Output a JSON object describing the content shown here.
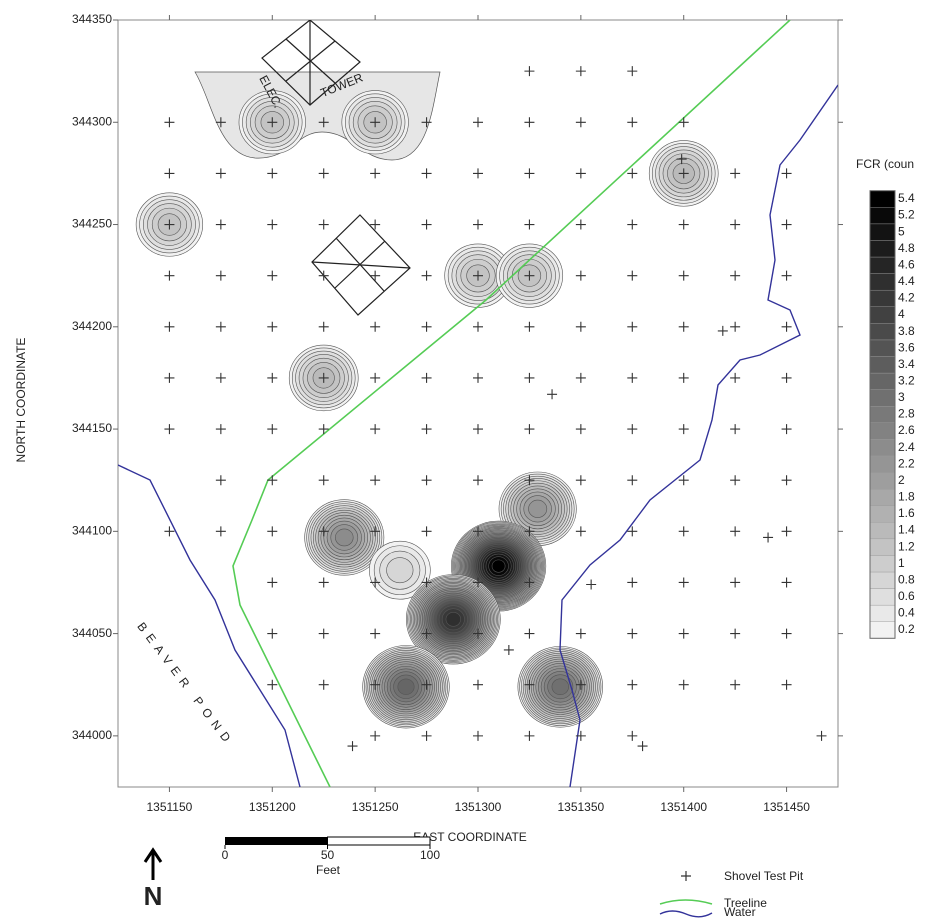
{
  "chart_data": {
    "type": "scatter",
    "xlabel": "EAST COORDINATE",
    "ylabel": "NORTH COORDINATE",
    "xlim": [
      1351125,
      1351475
    ],
    "ylim": [
      343975,
      344350
    ],
    "xticks": [
      1351150,
      1351200,
      1351250,
      1351300,
      1351350,
      1351400,
      1351450
    ],
    "yticks": [
      344000,
      344050,
      344100,
      344150,
      344200,
      344250,
      344300,
      344350
    ],
    "series": [
      {
        "name": "Shovel Test Pit",
        "color": "#333333",
        "x": [
          1351325,
          1351350,
          1351375,
          1351150,
          1351175,
          1351200,
          1351225,
          1351250,
          1351275,
          1351300,
          1351325,
          1351350,
          1351375,
          1351400,
          1351150,
          1351175,
          1351200,
          1351225,
          1351250,
          1351275,
          1351300,
          1351325,
          1351350,
          1351375,
          1351400,
          1351425,
          1351450,
          1351399,
          1351150,
          1351175,
          1351200,
          1351225,
          1351250,
          1351275,
          1351300,
          1351325,
          1351350,
          1351375,
          1351400,
          1351425,
          1351450,
          1351150,
          1351175,
          1351200,
          1351225,
          1351250,
          1351275,
          1351300,
          1351325,
          1351350,
          1351375,
          1351400,
          1351425,
          1351450,
          1351150,
          1351175,
          1351200,
          1351225,
          1351250,
          1351275,
          1351300,
          1351325,
          1351350,
          1351375,
          1351400,
          1351425,
          1351450,
          1351419,
          1351150,
          1351175,
          1351200,
          1351225,
          1351250,
          1351275,
          1351300,
          1351325,
          1351350,
          1351375,
          1351400,
          1351425,
          1351450,
          1351336,
          1351150,
          1351175,
          1351200,
          1351225,
          1351250,
          1351275,
          1351300,
          1351325,
          1351350,
          1351375,
          1351400,
          1351425,
          1351450,
          1351175,
          1351200,
          1351225,
          1351250,
          1351275,
          1351300,
          1351325,
          1351350,
          1351375,
          1351400,
          1351425,
          1351450,
          1351150,
          1351175,
          1351200,
          1351225,
          1351250,
          1351275,
          1351300,
          1351325,
          1351350,
          1351375,
          1351400,
          1351425,
          1351450,
          1351441,
          1351200,
          1351225,
          1351250,
          1351275,
          1351300,
          1351325,
          1351375,
          1351400,
          1351425,
          1351450,
          1351355,
          1351200,
          1351225,
          1351250,
          1351275,
          1351300,
          1351325,
          1351350,
          1351375,
          1351400,
          1351425,
          1351450,
          1351315,
          1351200,
          1351225,
          1351250,
          1351275,
          1351300,
          1351325,
          1351350,
          1351375,
          1351400,
          1351425,
          1351450,
          1351250,
          1351275,
          1351300,
          1351325,
          1351350,
          1351375,
          1351239,
          1351380,
          1351467
        ],
        "y": [
          344325,
          344325,
          344325,
          344300,
          344300,
          344300,
          344300,
          344300,
          344300,
          344300,
          344300,
          344300,
          344300,
          344300,
          344275,
          344275,
          344275,
          344275,
          344275,
          344275,
          344275,
          344275,
          344275,
          344275,
          344275,
          344275,
          344275,
          344282,
          344250,
          344250,
          344250,
          344250,
          344250,
          344250,
          344250,
          344250,
          344250,
          344250,
          344250,
          344250,
          344250,
          344225,
          344225,
          344225,
          344225,
          344225,
          344225,
          344225,
          344225,
          344225,
          344225,
          344225,
          344225,
          344225,
          344200,
          344200,
          344200,
          344200,
          344200,
          344200,
          344200,
          344200,
          344200,
          344200,
          344200,
          344200,
          344200,
          344198,
          344175,
          344175,
          344175,
          344175,
          344175,
          344175,
          344175,
          344175,
          344175,
          344175,
          344175,
          344175,
          344175,
          344167,
          344150,
          344150,
          344150,
          344150,
          344150,
          344150,
          344150,
          344150,
          344150,
          344150,
          344150,
          344150,
          344150,
          344125,
          344125,
          344125,
          344125,
          344125,
          344125,
          344125,
          344125,
          344125,
          344125,
          344125,
          344125,
          344100,
          344100,
          344100,
          344100,
          344100,
          344100,
          344100,
          344100,
          344100,
          344100,
          344100,
          344100,
          344100,
          344097,
          344075,
          344075,
          344075,
          344075,
          344075,
          344075,
          344075,
          344075,
          344075,
          344075,
          344074,
          344050,
          344050,
          344050,
          344050,
          344050,
          344050,
          344050,
          344050,
          344050,
          344050,
          344050,
          344042,
          344025,
          344025,
          344025,
          344025,
          344025,
          344025,
          344025,
          344025,
          344025,
          344025,
          344025,
          344000,
          344000,
          344000,
          344000,
          344000,
          344000,
          343995,
          343995,
          344000
        ]
      }
    ],
    "fcr_peaks": {
      "x": [
        1351200,
        1351250,
        1351150,
        1351400,
        1351300,
        1351325,
        1351225,
        1351235,
        1351262,
        1351329,
        1351310,
        1351288,
        1351265,
        1351340
      ],
      "y": [
        344300,
        344300,
        344250,
        344275,
        344225,
        344225,
        344175,
        344097,
        344081,
        344111,
        344083,
        344057,
        344024,
        344024
      ],
      "values": [
        1.2,
        1.2,
        1.2,
        1.4,
        1.2,
        1.2,
        1.4,
        2.4,
        0.8,
        2.2,
        5.4,
        4.4,
        3.2,
        3
      ]
    },
    "colorbar": {
      "title": "FCR (coun",
      "ticks": [
        0.2,
        0.4,
        0.6,
        0.8,
        1,
        1.2,
        1.4,
        1.6,
        1.8,
        2,
        2.2,
        2.4,
        2.6,
        2.8,
        3,
        3.2,
        3.4,
        3.6,
        3.8,
        4,
        4.2,
        4.4,
        4.6,
        4.8,
        5,
        5.2,
        5.4
      ]
    },
    "annotations": [
      "ELEC.",
      "TOWER",
      "BEAVER POND"
    ],
    "legend": {
      "treeline": "Treeline",
      "water": "Water"
    },
    "scale_bar": {
      "ticks": [
        0,
        50,
        100
      ],
      "unit": "Feet"
    },
    "north": "N"
  }
}
